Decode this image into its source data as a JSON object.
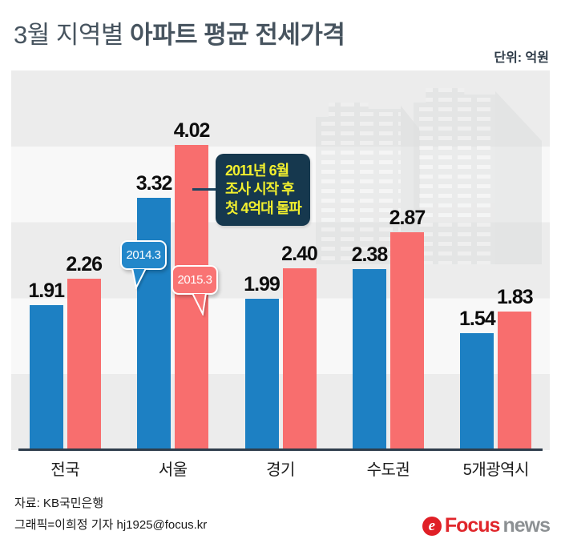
{
  "title": {
    "prefix": "3월 지역별",
    "emphasis": " 아파트 평균 전세가격"
  },
  "unit_label": "단위: 억원",
  "chart_data": {
    "type": "bar",
    "title": "3월 지역별 아파트 평균 전세가격",
    "unit": "억원",
    "categories": [
      "전국",
      "서울",
      "경기",
      "수도권",
      "5개광역시"
    ],
    "series": [
      {
        "name": "2014.3",
        "color": "#1d80c3",
        "values": [
          1.91,
          3.32,
          1.99,
          2.38,
          1.54
        ]
      },
      {
        "name": "2015.3",
        "color": "#f86e6e",
        "values": [
          2.26,
          4.02,
          2.4,
          2.87,
          1.83
        ]
      },
      {
        "name": "_note",
        "color": "",
        "values": []
      }
    ],
    "ylim": [
      0,
      5
    ],
    "grid": "alternating horizontal bands, no tick labels",
    "legend": "speech bubbles attached to Seoul bars",
    "value_labels": "shown above every bar, 2 decimals",
    "annotation": {
      "lines": [
        "2011년 6월",
        "조사 시작 후",
        "첫 4억대 돌파"
      ],
      "points_to": "서울 2015.3 bar (4.02)"
    }
  },
  "footer": {
    "source": "자료: KB국민은행",
    "credit": "그래픽=이희정 기자 hj1925@focus.kr"
  },
  "logo": {
    "icon_letter": "e",
    "brand": "Focus",
    "suffix": "news"
  },
  "colors": {
    "bar_2014": "#1d80c3",
    "bar_2015": "#f86e6e",
    "band_dark": "#ececec",
    "band_light": "#f8f8f8",
    "baseline": "#2e3d4c",
    "callout_bg": "#16384e",
    "callout_text": "#f2ef2e",
    "title_text": "#47545f",
    "logo_red": "#e0262b",
    "logo_gray": "#8c9093"
  }
}
